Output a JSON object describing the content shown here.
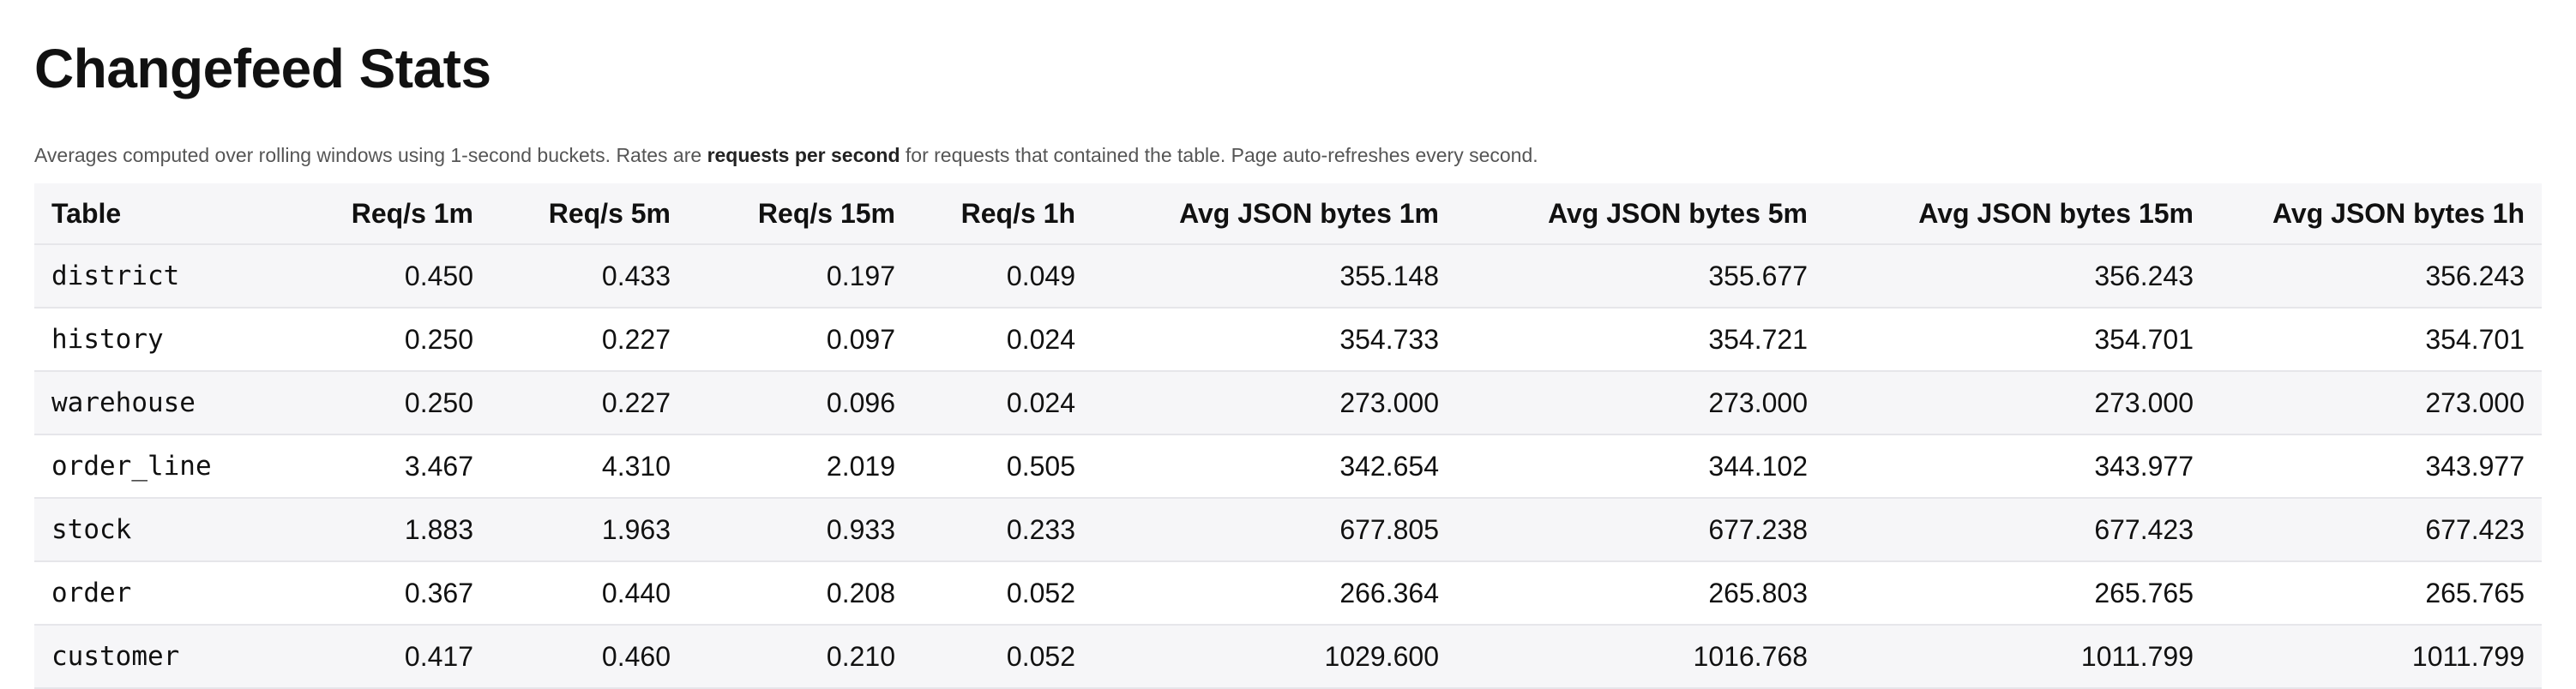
{
  "title": "Changefeed Stats",
  "subtitle": {
    "pre": "Averages computed over rolling windows using 1-second buckets. Rates are ",
    "bold": "requests per second",
    "post": " for requests that contained the table. Page auto-refreshes every second."
  },
  "table": {
    "headers": [
      "Table",
      "Req/s 1m",
      "Req/s 5m",
      "Req/s 15m",
      "Req/s 1h",
      "Avg JSON bytes 1m",
      "Avg JSON bytes 5m",
      "Avg JSON bytes 15m",
      "Avg JSON bytes 1h"
    ],
    "rows": [
      [
        "district",
        "0.450",
        "0.433",
        "0.197",
        "0.049",
        "355.148",
        "355.677",
        "356.243",
        "356.243"
      ],
      [
        "history",
        "0.250",
        "0.227",
        "0.097",
        "0.024",
        "354.733",
        "354.721",
        "354.701",
        "354.701"
      ],
      [
        "warehouse",
        "0.250",
        "0.227",
        "0.096",
        "0.024",
        "273.000",
        "273.000",
        "273.000",
        "273.000"
      ],
      [
        "order_line",
        "3.467",
        "4.310",
        "2.019",
        "0.505",
        "342.654",
        "344.102",
        "343.977",
        "343.977"
      ],
      [
        "stock",
        "1.883",
        "1.963",
        "0.933",
        "0.233",
        "677.805",
        "677.238",
        "677.423",
        "677.423"
      ],
      [
        "order",
        "0.367",
        "0.440",
        "0.208",
        "0.052",
        "266.364",
        "265.803",
        "265.765",
        "265.765"
      ],
      [
        "customer",
        "0.417",
        "0.460",
        "0.210",
        "0.052",
        "1029.600",
        "1016.768",
        "1011.799",
        "1011.799"
      ]
    ]
  }
}
